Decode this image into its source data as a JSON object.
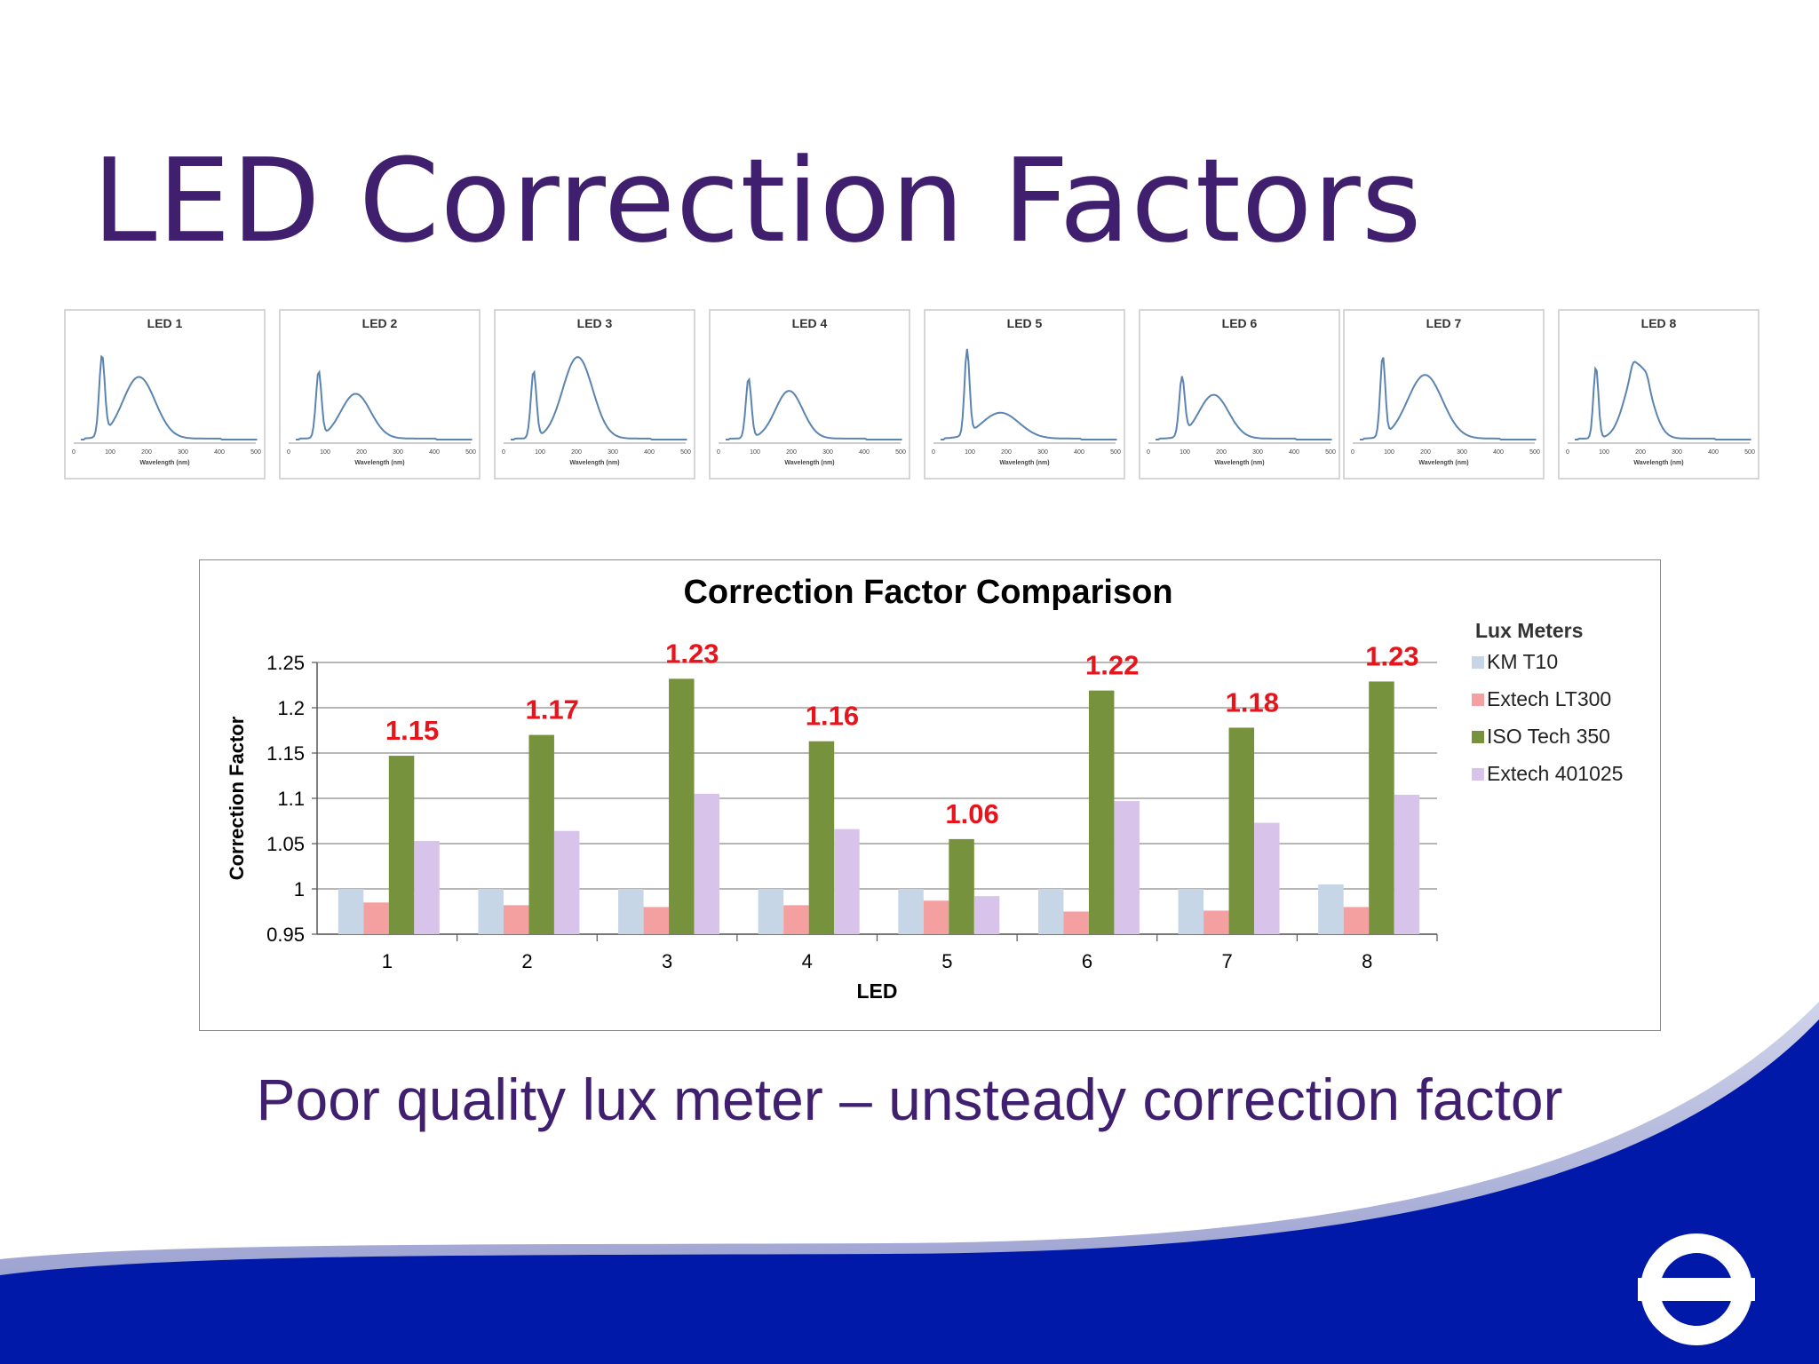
{
  "slide": {
    "title": "LED Correction Factors",
    "caption": "Poor quality lux meter – unsteady correction factor"
  },
  "spectra": {
    "xlabel": "Wavelength (nm)",
    "ticks": [
      "0",
      "100",
      "200",
      "300",
      "400",
      "500"
    ],
    "panels": [
      {
        "title": "LED 1"
      },
      {
        "title": "LED 2"
      },
      {
        "title": "LED 3"
      },
      {
        "title": "LED 4"
      },
      {
        "title": "LED 5"
      },
      {
        "title": "LED 6"
      },
      {
        "title": "LED 7"
      },
      {
        "title": "LED 8"
      }
    ]
  },
  "chart_data": {
    "type": "bar",
    "title": "Correction Factor Comparison",
    "xlabel": "LED",
    "ylabel": "Correction Factor",
    "ylim": [
      0.95,
      1.25
    ],
    "yticks": [
      "0.95",
      "1",
      "1.05",
      "1.1",
      "1.15",
      "1.2",
      "1.25"
    ],
    "categories": [
      "1",
      "2",
      "3",
      "4",
      "5",
      "6",
      "7",
      "8"
    ],
    "legend_title": "Lux Meters",
    "legend_position": "right",
    "grid": true,
    "series": [
      {
        "name": "KM T10",
        "color": "#c6d6e6",
        "values": [
          1.0,
          1.0,
          1.0,
          1.0,
          1.0,
          1.0,
          1.0,
          1.005
        ]
      },
      {
        "name": "Extech LT300",
        "color": "#f4a0a0",
        "values": [
          0.985,
          0.982,
          0.98,
          0.982,
          0.987,
          0.975,
          0.976,
          0.98
        ]
      },
      {
        "name": "ISO Tech  350",
        "color": "#76923c",
        "values": [
          1.147,
          1.17,
          1.232,
          1.163,
          1.055,
          1.219,
          1.178,
          1.229
        ]
      },
      {
        "name": "Extech 401025",
        "color": "#d8c4ea",
        "values": [
          1.053,
          1.064,
          1.105,
          1.066,
          0.992,
          1.097,
          1.073,
          1.104
        ]
      }
    ],
    "annotations": [
      "1.15",
      "1.17",
      "1.23",
      "1.16",
      "1.06",
      "1.22",
      "1.18",
      "1.23"
    ],
    "annotation_color": "#e8141b"
  },
  "colors": {
    "title": "#3f1f6e",
    "footer_blue": "#0019a8"
  },
  "logo_icon": "roundel-icon"
}
